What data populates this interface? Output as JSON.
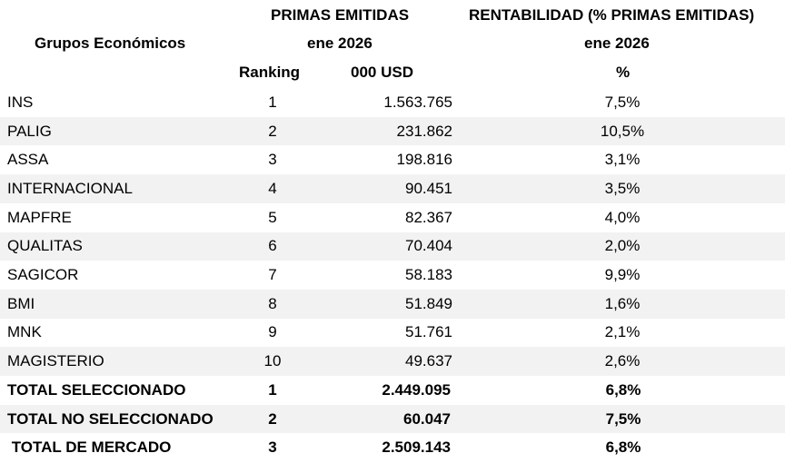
{
  "header": {
    "group_label": "Grupos Económicos",
    "primas_title": "PRIMAS EMITIDAS",
    "primas_period": "ene 2026",
    "ranking_label": "Ranking",
    "primas_unit": "000 USD",
    "rent_title": "RENTABILIDAD (% PRIMAS EMITIDAS)",
    "rent_period": "ene 2026",
    "rent_unit": "%"
  },
  "rows": [
    {
      "name": "INS",
      "rank": "1",
      "primas": "1.563.765",
      "rent": "7,5%"
    },
    {
      "name": "PALIG",
      "rank": "2",
      "primas": "231.862",
      "rent": "10,5%"
    },
    {
      "name": "ASSA",
      "rank": "3",
      "primas": "198.816",
      "rent": "3,1%"
    },
    {
      "name": "INTERNACIONAL",
      "rank": "4",
      "primas": "90.451",
      "rent": "3,5%"
    },
    {
      "name": "MAPFRE",
      "rank": "5",
      "primas": "82.367",
      "rent": "4,0%"
    },
    {
      "name": "QUALITAS",
      "rank": "6",
      "primas": "70.404",
      "rent": "2,0%"
    },
    {
      "name": "SAGICOR",
      "rank": "7",
      "primas": "58.183",
      "rent": "9,9%"
    },
    {
      "name": "BMI",
      "rank": "8",
      "primas": "51.849",
      "rent": "1,6%"
    },
    {
      "name": "MNK",
      "rank": "9",
      "primas": "51.761",
      "rent": "2,1%"
    },
    {
      "name": "MAGISTERIO",
      "rank": "10",
      "primas": "49.637",
      "rent": "2,6%"
    }
  ],
  "totals": [
    {
      "name": "TOTAL SELECCIONADO",
      "rank": "1",
      "primas": "2.449.095",
      "rent": "6,8%"
    },
    {
      "name": "TOTAL NO SELECCIONADO",
      "rank": "2",
      "primas": "60.047",
      "rent": "7,5%"
    },
    {
      "name": " TOTAL DE MERCADO",
      "rank": "3",
      "primas": "2.509.143",
      "rent": "6,8%"
    }
  ]
}
